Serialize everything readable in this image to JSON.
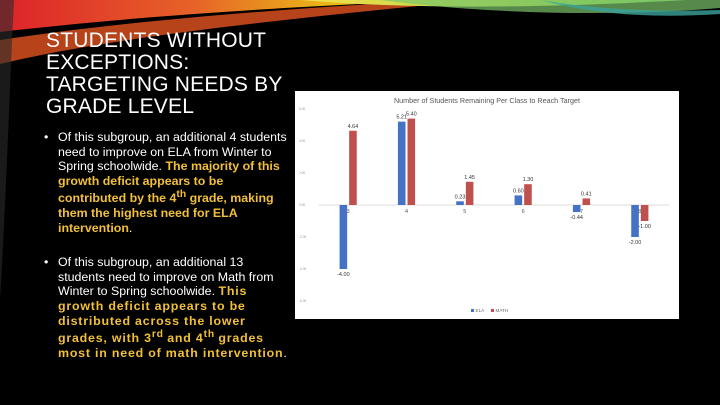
{
  "slide": {
    "title": "Students Without Exceptions: Targeting Needs by Grade Level",
    "bullets": [
      {
        "marker": "•",
        "plain": "Of this subgroup, an additional 4 students need to improve on ELA from Winter to Spring schoolwide.",
        "hl_a": "The majority of this growth deficit appears to be contributed by the 4",
        "hl_sup": "th",
        "hl_b": "grade, making them the highest need for ELA intervention",
        "tail": "."
      },
      {
        "marker": "•",
        "plain": "Of this subgroup, an additional 13 students need to improve on Math from Winter to Spring schoolwide.",
        "hl_a": "This growth deficit appears to be distributed across the lower grades, with 3",
        "hl_sup1": "rd",
        "hl_mid": "and 4",
        "hl_sup2": "th",
        "hl_b": "grades most in need of math intervention",
        "tail": "."
      }
    ]
  },
  "colors": {
    "ela": "#4472c4",
    "math": "#c0504d",
    "highlight": "#f2c037",
    "background": "#000000"
  },
  "chart_data": {
    "type": "bar",
    "title": "Number of Students Remaining Per Class to Reach Target",
    "categories": [
      "3",
      "4",
      "5",
      "6",
      "7",
      "8"
    ],
    "series": [
      {
        "name": "ELA",
        "values": [
          -4.0,
          5.21,
          0.23,
          0.6,
          -0.44,
          -2.0
        ],
        "labels": [
          "-4.00",
          "5.21",
          "0.23",
          "0.60",
          "-0.44",
          "-2.00"
        ]
      },
      {
        "name": "MATH",
        "values": [
          4.64,
          5.4,
          1.45,
          1.3,
          0.41,
          -1.0
        ],
        "labels": [
          "4.64",
          "5.40",
          "1.45",
          "1.30",
          "0.41",
          "-1.00"
        ]
      }
    ],
    "yticks": [
      "6.00",
      "4.00",
      "2.00",
      "0.00",
      "-2.00",
      "-4.00",
      "-6.00"
    ],
    "ylim": [
      -6,
      6
    ],
    "grid": false,
    "legend": "bottom"
  }
}
